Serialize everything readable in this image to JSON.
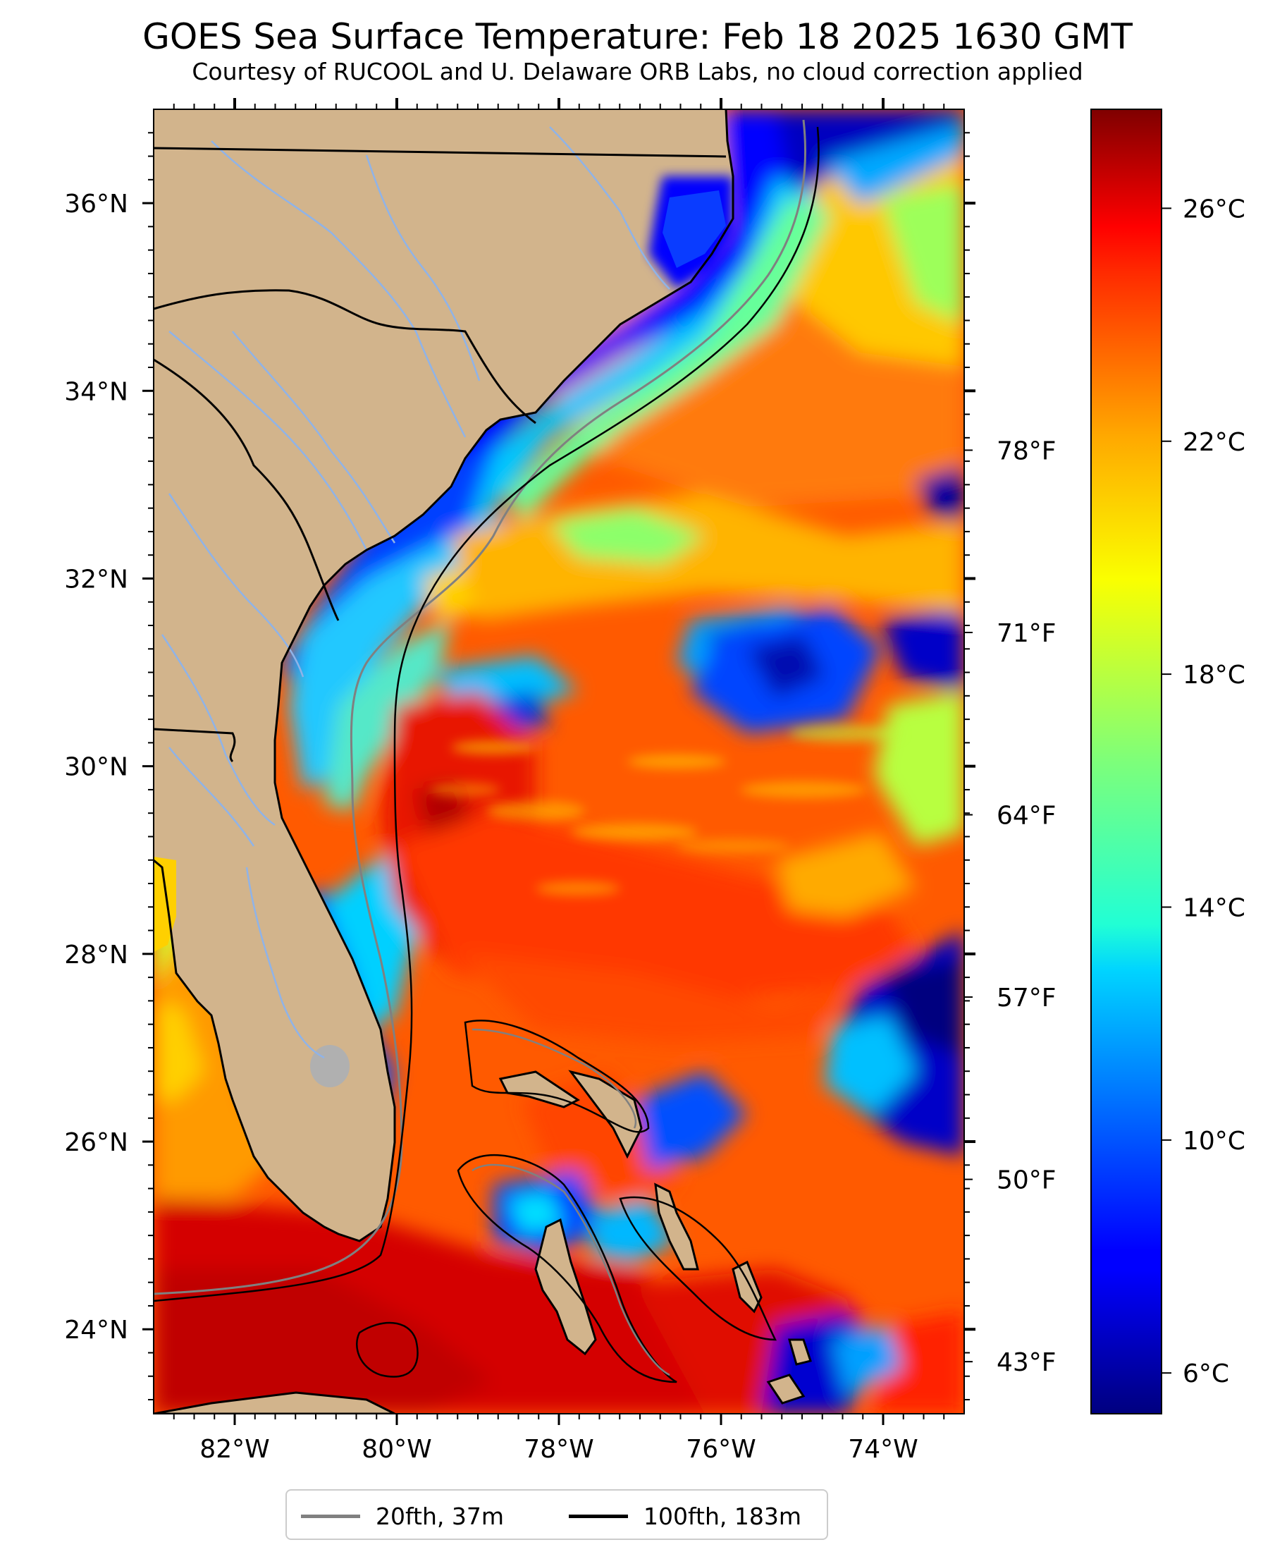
{
  "title": "GOES Sea Surface Temperature: Feb 18 2025 1630 GMT",
  "subtitle": "Courtesy of RUCOOL and U. Delaware ORB Labs, no cloud correction applied",
  "map": {
    "lon_range": [
      -83,
      -73
    ],
    "lat_range": [
      23.1,
      37.0
    ],
    "lat_ticks": [
      {
        "value": 24,
        "label": "24°N"
      },
      {
        "value": 26,
        "label": "26°N"
      },
      {
        "value": 28,
        "label": "28°N"
      },
      {
        "value": 30,
        "label": "30°N"
      },
      {
        "value": 32,
        "label": "32°N"
      },
      {
        "value": 34,
        "label": "34°N"
      },
      {
        "value": 36,
        "label": "36°N"
      }
    ],
    "lon_ticks": [
      {
        "value": -82,
        "label": "82°W"
      },
      {
        "value": -80,
        "label": "80°W"
      },
      {
        "value": -78,
        "label": "78°W"
      },
      {
        "value": -76,
        "label": "76°W"
      },
      {
        "value": -74,
        "label": "74°W"
      }
    ],
    "right_axis_fahrenheit": [
      {
        "value": 43,
        "label": "43°F"
      },
      {
        "value": 50,
        "label": "50°F"
      },
      {
        "value": 57,
        "label": "57°F"
      },
      {
        "value": 64,
        "label": "64°F"
      },
      {
        "value": 71,
        "label": "71°F"
      },
      {
        "value": 78,
        "label": "78°F"
      }
    ],
    "colors": {
      "land": "#d2b48c",
      "shelf_20fth": "#808080",
      "shelf_100fth": "#000000",
      "rivers": "#8fb3e8",
      "lake": "#b0b0b0",
      "no_data": "#ffffff"
    }
  },
  "colorbar": {
    "range_c": [
      5.3,
      27.7
    ],
    "ticks": [
      {
        "value": 6,
        "label": "6°C"
      },
      {
        "value": 10,
        "label": "10°C"
      },
      {
        "value": 14,
        "label": "14°C"
      },
      {
        "value": 18,
        "label": "18°C"
      },
      {
        "value": 22,
        "label": "22°C"
      },
      {
        "value": 26,
        "label": "26°C"
      }
    ],
    "colormap": "jet"
  },
  "legend": [
    {
      "label": "20fth, 37m",
      "color": "#808080"
    },
    {
      "label": "100fth, 183m",
      "color": "#000000"
    }
  ]
}
